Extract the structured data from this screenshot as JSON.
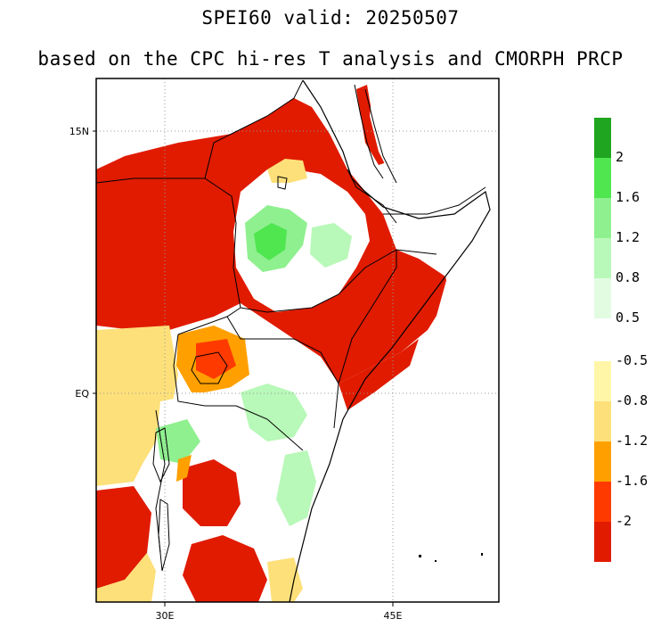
{
  "title": "SPEI60   valid: 20250507",
  "subtitle": "based on the CPC hi-res T analysis and CMORPH PRCP",
  "lat_labels": [
    "15N",
    "EQ"
  ],
  "lon_labels": [
    "30E",
    "45E"
  ],
  "colorbar": {
    "wet": [
      {
        "label": "2",
        "color": "#1fa51f"
      },
      {
        "label": "1.6",
        "color": "#4fe64f"
      },
      {
        "label": "1.2",
        "color": "#8ff08f"
      },
      {
        "label": "0.8",
        "color": "#b8f8b8"
      },
      {
        "label": "0.5",
        "color": "#e2fce2"
      }
    ],
    "wet_top_color": "#1fa51f",
    "dry": [
      {
        "label": "-0.5",
        "color": "#fff6a8"
      },
      {
        "label": "-0.8",
        "color": "#fde07a"
      },
      {
        "label": "-1.2",
        "color": "#ffa000"
      },
      {
        "label": "-1.6",
        "color": "#ff3a00"
      },
      {
        "label": "-2",
        "color": "#e01b00"
      }
    ],
    "dry_bottom_color": "#e01b00"
  },
  "colors": {
    "extreme_dry": "#e01b00",
    "severe_dry": "#ff3a00",
    "moderate_dry": "#ffa000",
    "mild_dry": "#fde07a",
    "near_dry": "#fff6a8",
    "near_wet": "#e2fce2",
    "mild_wet": "#b8f8b8",
    "moderate_wet": "#8ff08f",
    "strong_wet": "#4fe64f",
    "extreme_wet": "#1fa51f"
  }
}
